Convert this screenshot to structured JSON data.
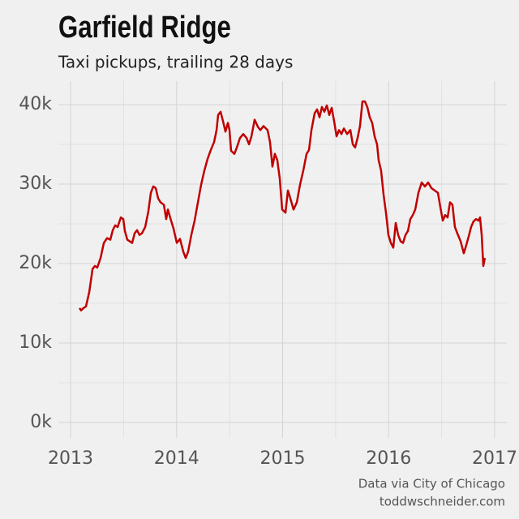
{
  "chart_data": {
    "type": "line",
    "title": "Garfield Ridge",
    "subtitle": "Taxi pickups, trailing 28 days",
    "caption": [
      "Data via City of Chicago",
      "toddwschneider.com"
    ],
    "x": [
      2013.084,
      2013.099,
      2013.122,
      2013.145,
      2013.176,
      2013.207,
      2013.229,
      2013.252,
      2013.283,
      2013.314,
      2013.344,
      2013.375,
      2013.398,
      2013.421,
      2013.444,
      2013.474,
      2013.497,
      2013.512,
      2013.535,
      2013.558,
      2013.581,
      2013.604,
      2013.627,
      2013.65,
      2013.673,
      2013.704,
      2013.734,
      2013.757,
      2013.78,
      2013.803,
      2013.826,
      2013.849,
      2013.88,
      2013.902,
      2013.918,
      2013.933,
      2013.948,
      2013.971,
      2014.002,
      2014.032,
      2014.063,
      2014.086,
      2014.109,
      2014.139,
      2014.17,
      2014.201,
      2014.231,
      2014.262,
      2014.293,
      2014.323,
      2014.354,
      2014.377,
      2014.392,
      2014.415,
      2014.438,
      2014.461,
      2014.484,
      2014.499,
      2014.514,
      2014.545,
      2014.568,
      2014.598,
      2014.629,
      2014.66,
      2014.683,
      2014.706,
      2014.736,
      2014.767,
      2014.79,
      2014.82,
      2014.858,
      2014.881,
      2014.904,
      2014.927,
      2014.95,
      2014.973,
      2014.996,
      2015.027,
      2015.05,
      2015.073,
      2015.103,
      2015.134,
      2015.164,
      2015.195,
      2015.226,
      2015.249,
      2015.272,
      2015.302,
      2015.325,
      2015.348,
      2015.371,
      2015.394,
      2015.417,
      2015.44,
      2015.463,
      2015.486,
      2015.509,
      2015.532,
      2015.555,
      2015.578,
      2015.608,
      2015.639,
      2015.662,
      2015.684,
      2015.707,
      2015.73,
      2015.753,
      2015.776,
      2015.799,
      2015.822,
      2015.845,
      2015.868,
      2015.891,
      2015.906,
      2015.929,
      2015.952,
      2015.975,
      2015.998,
      2016.021,
      2016.044,
      2016.067,
      2016.09,
      2016.113,
      2016.136,
      2016.159,
      2016.182,
      2016.205,
      2016.228,
      2016.251,
      2016.281,
      2016.312,
      2016.342,
      2016.373,
      2016.403,
      2016.434,
      2016.465,
      2016.488,
      2016.511,
      2016.533,
      2016.556,
      2016.579,
      2016.602,
      2016.625,
      2016.648,
      2016.679,
      2016.709,
      2016.732,
      2016.755,
      2016.778,
      2016.801,
      2016.824,
      2016.847,
      2016.862,
      2016.878,
      2016.893,
      2016.908
    ],
    "series": [
      {
        "name": "Taxi pickups",
        "color": "#c00000",
        "values": [
          14400,
          14100,
          14400,
          14600,
          16400,
          19300,
          19700,
          19500,
          20700,
          22600,
          23200,
          23000,
          24200,
          24800,
          24600,
          25800,
          25600,
          24100,
          23000,
          22800,
          22600,
          23800,
          24200,
          23600,
          23800,
          24600,
          26600,
          28900,
          29700,
          29500,
          28200,
          27700,
          27400,
          25600,
          26800,
          26100,
          25400,
          24400,
          22600,
          23100,
          21500,
          20700,
          21500,
          23600,
          25400,
          27700,
          29900,
          31700,
          33200,
          34300,
          35300,
          36800,
          38700,
          39100,
          37900,
          36600,
          37700,
          36800,
          34200,
          33800,
          34600,
          35800,
          36300,
          35800,
          35000,
          36000,
          38100,
          37200,
          36800,
          37300,
          36800,
          35300,
          32200,
          33800,
          33000,
          30700,
          26800,
          26400,
          29200,
          28200,
          26800,
          27700,
          29900,
          31700,
          33800,
          34300,
          36800,
          38900,
          39400,
          38400,
          39700,
          39100,
          39900,
          38700,
          39600,
          37900,
          36000,
          36800,
          36300,
          37000,
          36300,
          36800,
          35000,
          34600,
          35800,
          37300,
          40400,
          40400,
          39700,
          38400,
          37700,
          36000,
          35000,
          33000,
          31700,
          28700,
          26400,
          23600,
          22600,
          22000,
          25100,
          23600,
          22800,
          22600,
          23600,
          24100,
          25600,
          26100,
          26800,
          28900,
          30200,
          29700,
          30200,
          29500,
          29200,
          28900,
          27100,
          25400,
          26100,
          25800,
          27700,
          27400,
          24600,
          23800,
          22800,
          21300,
          22300,
          23400,
          24600,
          25300,
          25600,
          25400,
          25800,
          23600,
          19700,
          20700
        ]
      }
    ],
    "xlim": [
      2012.885,
      2017.115
    ],
    "xticks": [
      2013,
      2014,
      2015,
      2016,
      2017
    ],
    "ylim": [
      -1940,
      42960
    ],
    "yticks": [
      {
        "value": 0,
        "label": "0k"
      },
      {
        "value": 10000,
        "label": "10k"
      },
      {
        "value": 20000,
        "label": "20k"
      },
      {
        "value": 30000,
        "label": "30k"
      },
      {
        "value": 40000,
        "label": "40k"
      }
    ],
    "grid": true
  }
}
